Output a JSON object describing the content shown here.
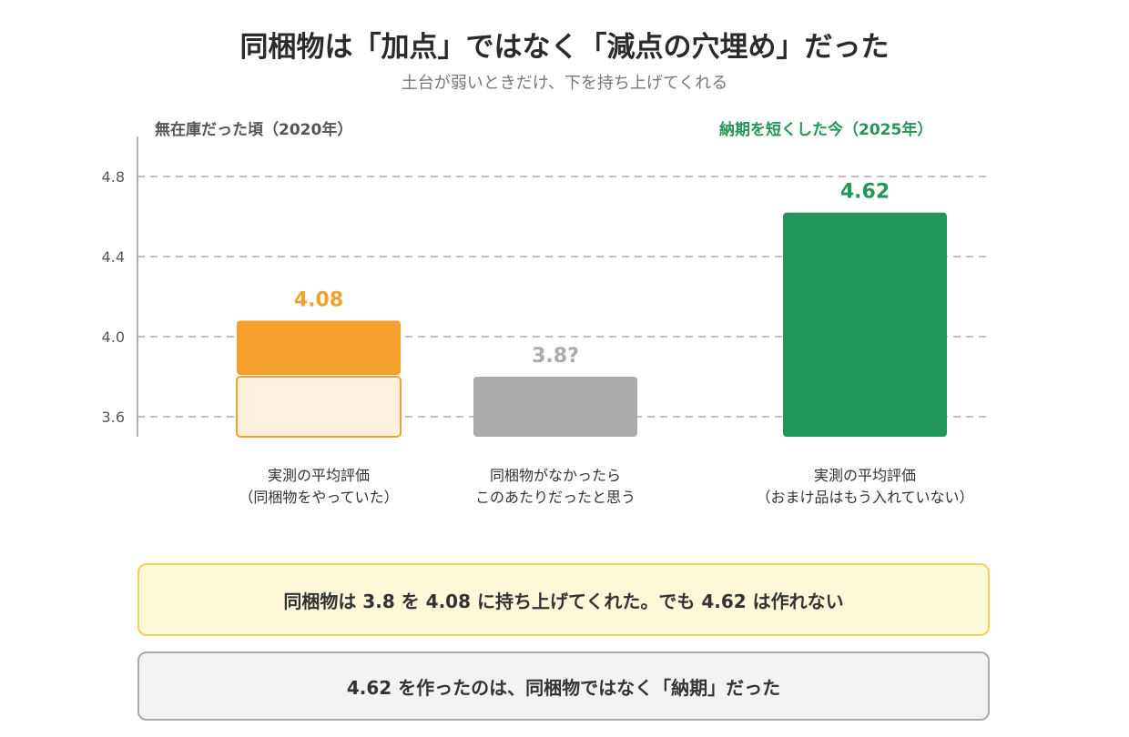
{
  "title": "同梱物は「加点」ではなく「減点の穴埋め」だった",
  "subtitle": "土台が弱いときだけ、下を持ち上げてくれる",
  "groups": {
    "left": {
      "label": "無在庫だった頃（2020年）",
      "color": "#555555"
    },
    "right": {
      "label": "納期を短くした今（2025年）",
      "color": "#23965a"
    }
  },
  "chart_data": {
    "type": "bar",
    "ylim": [
      3.5,
      4.9
    ],
    "yticks": [
      3.6,
      4.0,
      4.4,
      4.8
    ],
    "ytick_labels": [
      "3.6",
      "4.0",
      "4.4",
      "4.8"
    ],
    "grid": true,
    "bars": [
      {
        "category_lines": [
          "実測の平均評価",
          "（同梱物をやっていた）"
        ],
        "value": 4.08,
        "base_value": 3.8,
        "value_label": "4.08",
        "color": "#f5a02c",
        "base_color": "#fdf0dc",
        "label_color": "#f5a02c"
      },
      {
        "category_lines": [
          "同梱物がなかったら",
          "このあたりだったと思う"
        ],
        "value": 3.8,
        "value_label": "3.8?",
        "color": "#aaaaaa",
        "label_color": "#aaaaaa"
      },
      {
        "category_lines": [
          "実測の平均評価",
          "（おまけ品はもう入れていない）"
        ],
        "value": 4.62,
        "value_label": "4.62",
        "color": "#23965a",
        "label_color": "#23965a"
      }
    ]
  },
  "messages": {
    "highlight": "同梱物は 3.8 を 4.08 に持ち上げてくれた。でも 4.62 は作れない",
    "conclusion": "4.62 を作ったのは、同梱物ではなく「納期」だった"
  }
}
